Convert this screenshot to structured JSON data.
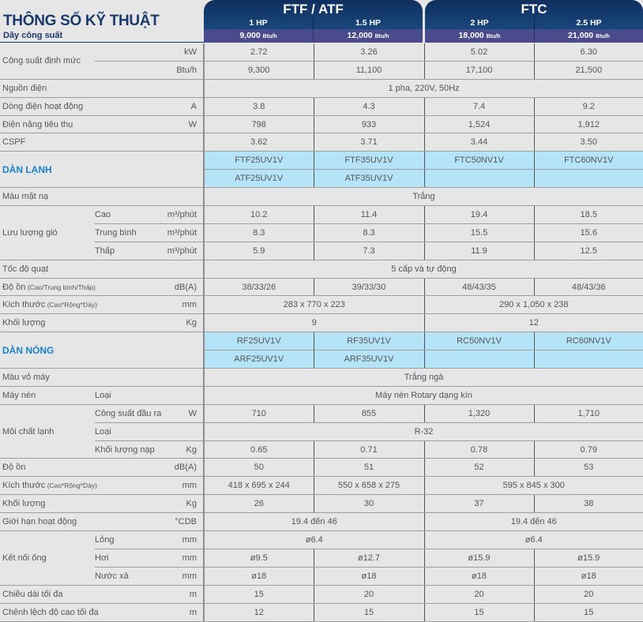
{
  "header": {
    "title": "THÔNG SỐ KỸ THUẬT",
    "range_label": "Dãy công suất",
    "groups": [
      {
        "name": "FTF / ATF",
        "models": [
          {
            "hp": "1 HP",
            "btu": "9,000",
            "btu_unit": "Btu/h"
          },
          {
            "hp": "1.5 HP",
            "btu": "12,000",
            "btu_unit": "Btu/h"
          }
        ]
      },
      {
        "name": "FTC",
        "models": [
          {
            "hp": "2 HP",
            "btu": "18,000",
            "btu_unit": "Btu/h"
          },
          {
            "hp": "2.5 HP",
            "btu": "21,000",
            "btu_unit": "Btu/h"
          }
        ]
      }
    ]
  },
  "colors": {
    "navy": "#1b3a6b",
    "section_blue": "#1a82c4",
    "model_cell": "#b5e3f7",
    "btu_row": "#4a4b8c"
  },
  "groups": [
    {
      "label": "Công suất định mức",
      "rows": [
        {
          "sub": "",
          "unit": "kW",
          "cells": [
            {
              "v": "2.72"
            },
            {
              "v": "3.26"
            },
            {
              "v": "5.02"
            },
            {
              "v": "6.30"
            }
          ]
        },
        {
          "sub": "",
          "unit": "Btu/h",
          "cells": [
            {
              "v": "9,300"
            },
            {
              "v": "11,100"
            },
            {
              "v": "17,100"
            },
            {
              "v": "21,500"
            }
          ]
        }
      ]
    },
    {
      "label": "Nguồn điện",
      "rows": [
        {
          "unit": "",
          "cells": [
            {
              "v": "1 pha, 220V, 50Hz",
              "cols": 4
            }
          ]
        }
      ]
    },
    {
      "label": "Dòng điện hoạt động",
      "rows": [
        {
          "unit": "A",
          "cells": [
            {
              "v": "3.8"
            },
            {
              "v": "4.3"
            },
            {
              "v": "7.4"
            },
            {
              "v": "9.2"
            }
          ]
        }
      ]
    },
    {
      "label": "Điện năng tiêu thụ",
      "rows": [
        {
          "unit": "W",
          "cells": [
            {
              "v": "798"
            },
            {
              "v": "933"
            },
            {
              "v": "1,524"
            },
            {
              "v": "1,912"
            }
          ]
        }
      ]
    },
    {
      "label": "CSPF",
      "rows": [
        {
          "unit": "",
          "cells": [
            {
              "v": "3.62"
            },
            {
              "v": "3.71"
            },
            {
              "v": "3.44"
            },
            {
              "v": "3.50"
            }
          ]
        }
      ]
    },
    {
      "label": "DÀN LẠNH",
      "section": true,
      "rows": [
        {
          "cells": [
            {
              "v": "FTF25UV1V"
            },
            {
              "v": "FTF35UV1V"
            },
            {
              "v": "FTC50NV1V"
            },
            {
              "v": "FTC60NV1V"
            }
          ]
        },
        {
          "cells": [
            {
              "v": "ATF25UV1V"
            },
            {
              "v": "ATF35UV1V"
            },
            {
              "v": ""
            },
            {
              "v": ""
            }
          ]
        }
      ]
    },
    {
      "label": "Màu mặt nạ",
      "rows": [
        {
          "unit": "",
          "cells": [
            {
              "v": "Trắng",
              "cols": 4
            }
          ]
        }
      ]
    },
    {
      "label": "Lưu lượng gió",
      "rows": [
        {
          "sub": "Cao",
          "unit": "m³/phút",
          "cells": [
            {
              "v": "10.2"
            },
            {
              "v": "11.4"
            },
            {
              "v": "19.4"
            },
            {
              "v": "18.5"
            }
          ]
        },
        {
          "sub": "Trung bình",
          "unit": "m³/phút",
          "cells": [
            {
              "v": "8.3"
            },
            {
              "v": "8.3"
            },
            {
              "v": "15.5"
            },
            {
              "v": "15.6"
            }
          ]
        },
        {
          "sub": "Thấp",
          "unit": "m³/phút",
          "cells": [
            {
              "v": "5.9"
            },
            {
              "v": "7.3"
            },
            {
              "v": "11.9"
            },
            {
              "v": "12.5"
            }
          ]
        }
      ]
    },
    {
      "label": "Tốc độ quạt",
      "rows": [
        {
          "unit": "",
          "cells": [
            {
              "v": "5 cấp và tự động",
              "cols": 4
            }
          ]
        }
      ]
    },
    {
      "label": "Độ ồn",
      "note": "(Cao/Trung bình/Thấp)",
      "rows": [
        {
          "unit": "dB(A)",
          "cells": [
            {
              "v": "38/33/26"
            },
            {
              "v": "39/33/30"
            },
            {
              "v": "48/43/35"
            },
            {
              "v": "48/43/36"
            }
          ]
        }
      ]
    },
    {
      "label": "Kích thước",
      "note": "(Cao*Rộng*Dày)",
      "rows": [
        {
          "unit": "mm",
          "cells": [
            {
              "v": "283 x 770 x 223",
              "cols": 2
            },
            {
              "v": "290 x 1,050 x 238",
              "cols": 2
            }
          ]
        }
      ]
    },
    {
      "label": "Khối lượng",
      "rows": [
        {
          "unit": "Kg",
          "cells": [
            {
              "v": "9",
              "cols": 2
            },
            {
              "v": "12",
              "cols": 2
            }
          ]
        }
      ]
    },
    {
      "label": "DÀN NÓNG",
      "section": true,
      "rows": [
        {
          "cells": [
            {
              "v": "RF25UV1V"
            },
            {
              "v": "RF35UV1V"
            },
            {
              "v": "RC50NV1V"
            },
            {
              "v": "RC60NV1V"
            }
          ]
        },
        {
          "cells": [
            {
              "v": "ARF25UV1V"
            },
            {
              "v": "ARF35UV1V"
            },
            {
              "v": ""
            },
            {
              "v": ""
            }
          ]
        }
      ]
    },
    {
      "label": "Màu vỏ máy",
      "rows": [
        {
          "unit": "",
          "cells": [
            {
              "v": "Trắng ngà",
              "cols": 4
            }
          ]
        }
      ]
    },
    {
      "label": "Máy nén",
      "rows": [
        {
          "sub": "Loại",
          "unit": "",
          "cells": [
            {
              "v": "Máy nén Rotary dạng kín",
              "cols": 4
            }
          ]
        }
      ]
    },
    {
      "label": "Môi chất lạnh",
      "rows": [
        {
          "sub": "Công suất đầu ra",
          "unit": "W",
          "cells": [
            {
              "v": "710"
            },
            {
              "v": "855"
            },
            {
              "v": "1,320"
            },
            {
              "v": "1,710"
            }
          ]
        },
        {
          "sub": "Loại",
          "unit": "",
          "cells": [
            {
              "v": "R-32",
              "cols": 4
            }
          ]
        },
        {
          "sub": "Khối lượng nạp",
          "unit": "Kg",
          "cells": [
            {
              "v": "0.65"
            },
            {
              "v": "0.71"
            },
            {
              "v": "0.78"
            },
            {
              "v": "0.79"
            }
          ]
        }
      ]
    },
    {
      "label": "Độ ồn",
      "rows": [
        {
          "unit": "dB(A)",
          "cells": [
            {
              "v": "50"
            },
            {
              "v": "51"
            },
            {
              "v": "52"
            },
            {
              "v": "53"
            }
          ]
        }
      ]
    },
    {
      "label": "Kích thước",
      "note": "(Cao*Rộng*Dày)",
      "rows": [
        {
          "unit": "mm",
          "cells": [
            {
              "v": "418 x 695 x 244"
            },
            {
              "v": "550 x 658 x 275"
            },
            {
              "v": "595 x 845 x 300",
              "cols": 2
            }
          ]
        }
      ]
    },
    {
      "label": "Khối lượng",
      "rows": [
        {
          "unit": "Kg",
          "cells": [
            {
              "v": "26"
            },
            {
              "v": "30"
            },
            {
              "v": "37"
            },
            {
              "v": "38"
            }
          ]
        }
      ]
    },
    {
      "label": "Giới hạn hoạt động",
      "rows": [
        {
          "unit": "°CDB",
          "cells": [
            {
              "v": "19.4 đến 46",
              "cols": 2
            },
            {
              "v": "19.4 đến 46",
              "cols": 2
            }
          ]
        }
      ]
    },
    {
      "label": "Kết nối ống",
      "rows": [
        {
          "sub": "Lỏng",
          "unit": "mm",
          "cells": [
            {
              "v": "ø6.4",
              "cols": 2
            },
            {
              "v": "ø6.4",
              "cols": 2
            }
          ]
        },
        {
          "sub": "Hơi",
          "unit": "mm",
          "cells": [
            {
              "v": "ø9.5"
            },
            {
              "v": "ø12.7"
            },
            {
              "v": "ø15.9"
            },
            {
              "v": "ø15.9"
            }
          ]
        },
        {
          "sub": "Nước xả",
          "unit": "mm",
          "cells": [
            {
              "v": "ø18"
            },
            {
              "v": "ø18"
            },
            {
              "v": "ø18"
            },
            {
              "v": "ø18"
            }
          ]
        }
      ]
    },
    {
      "label": "Chiều dài tối đa",
      "rows": [
        {
          "unit": "m",
          "cells": [
            {
              "v": "15"
            },
            {
              "v": "20"
            },
            {
              "v": "20"
            },
            {
              "v": "20"
            }
          ]
        }
      ]
    },
    {
      "label": "Chênh lệch độ cao tối đa",
      "rows": [
        {
          "unit": "m",
          "cells": [
            {
              "v": "12"
            },
            {
              "v": "15"
            },
            {
              "v": "15"
            },
            {
              "v": "15"
            }
          ]
        }
      ]
    }
  ]
}
